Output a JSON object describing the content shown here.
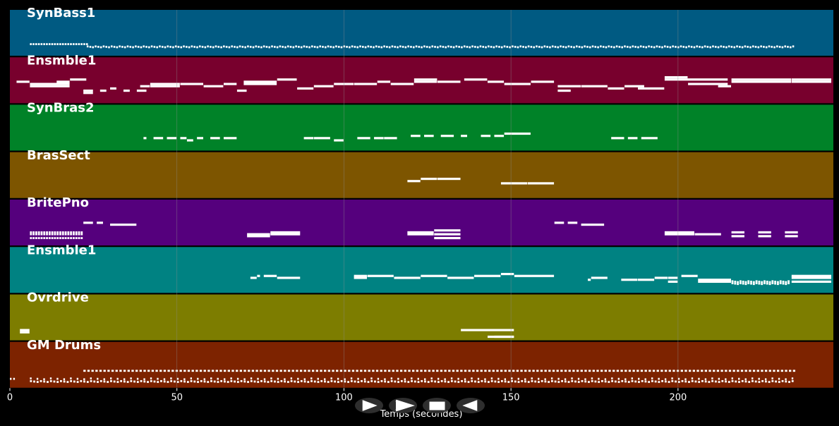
{
  "chart_data": {
    "type": "piano-roll",
    "title": "",
    "xlabel": "Temps (secondes)",
    "ylabel": "",
    "xlim": [
      0,
      246.5
    ],
    "x_ticks": [
      0,
      50,
      100,
      150,
      200
    ],
    "x_tick_labels": [
      "0",
      "50",
      "100",
      "150",
      "200"
    ],
    "grid": true,
    "note_color": "#ffffff",
    "grid_color": "#8c8c8c",
    "tracks": [
      {
        "name": "SynBass1",
        "color": "#005a82",
        "pitch_range": [
          0,
          10
        ],
        "dense": [
          {
            "start": 6,
            "end": 23,
            "pitch": 3,
            "step": 0.8,
            "len": 0.55,
            "var": 0
          },
          {
            "start": 23,
            "end": 235,
            "pitch": 2,
            "step": 0.8,
            "len": 0.55,
            "var": 1
          }
        ],
        "notes": []
      },
      {
        "name": "Ensmble1",
        "color": "#78002d",
        "pitch_range": [
          0,
          12
        ],
        "dense": [],
        "notes": [
          {
            "start": 2,
            "end": 6,
            "pitch": 8
          },
          {
            "start": 6,
            "end": 18,
            "pitch": 7
          },
          {
            "start": 6,
            "end": 18,
            "pitch": 6
          },
          {
            "start": 14,
            "end": 18,
            "pitch": 8
          },
          {
            "start": 18,
            "end": 23,
            "pitch": 9
          },
          {
            "start": 22,
            "end": 25,
            "pitch": 4
          },
          {
            "start": 22,
            "end": 25,
            "pitch": 3
          },
          {
            "start": 27,
            "end": 29,
            "pitch": 4
          },
          {
            "start": 30,
            "end": 32,
            "pitch": 5
          },
          {
            "start": 34,
            "end": 36,
            "pitch": 4
          },
          {
            "start": 38,
            "end": 41,
            "pitch": 4
          },
          {
            "start": 39,
            "end": 42,
            "pitch": 6
          },
          {
            "start": 42,
            "end": 51,
            "pitch": 6
          },
          {
            "start": 42,
            "end": 51,
            "pitch": 7
          },
          {
            "start": 51,
            "end": 58,
            "pitch": 7
          },
          {
            "start": 58,
            "end": 64,
            "pitch": 6
          },
          {
            "start": 64,
            "end": 68,
            "pitch": 7
          },
          {
            "start": 68,
            "end": 71,
            "pitch": 4
          },
          {
            "start": 70,
            "end": 80,
            "pitch": 8
          },
          {
            "start": 70,
            "end": 80,
            "pitch": 7
          },
          {
            "start": 80,
            "end": 86,
            "pitch": 9
          },
          {
            "start": 86,
            "end": 91,
            "pitch": 5
          },
          {
            "start": 91,
            "end": 97,
            "pitch": 6
          },
          {
            "start": 97,
            "end": 103,
            "pitch": 7
          },
          {
            "start": 103,
            "end": 110,
            "pitch": 7
          },
          {
            "start": 110,
            "end": 114,
            "pitch": 8
          },
          {
            "start": 114,
            "end": 121,
            "pitch": 7
          },
          {
            "start": 121,
            "end": 128,
            "pitch": 9
          },
          {
            "start": 121,
            "end": 128,
            "pitch": 8
          },
          {
            "start": 128,
            "end": 135,
            "pitch": 8
          },
          {
            "start": 136,
            "end": 143,
            "pitch": 9
          },
          {
            "start": 143,
            "end": 148,
            "pitch": 8
          },
          {
            "start": 148,
            "end": 156,
            "pitch": 7
          },
          {
            "start": 156,
            "end": 163,
            "pitch": 8
          },
          {
            "start": 164,
            "end": 168,
            "pitch": 4
          },
          {
            "start": 164,
            "end": 171,
            "pitch": 6
          },
          {
            "start": 171,
            "end": 179,
            "pitch": 6
          },
          {
            "start": 179,
            "end": 184,
            "pitch": 5
          },
          {
            "start": 184,
            "end": 190,
            "pitch": 6
          },
          {
            "start": 188,
            "end": 196,
            "pitch": 5
          },
          {
            "start": 196,
            "end": 203,
            "pitch": 10
          },
          {
            "start": 196,
            "end": 215,
            "pitch": 9
          },
          {
            "start": 203,
            "end": 215,
            "pitch": 7
          },
          {
            "start": 212,
            "end": 216,
            "pitch": 6
          },
          {
            "start": 216,
            "end": 234,
            "pitch": 9
          },
          {
            "start": 216,
            "end": 234,
            "pitch": 8
          },
          {
            "start": 234,
            "end": 246,
            "pitch": 9
          },
          {
            "start": 234,
            "end": 246,
            "pitch": 8
          }
        ]
      },
      {
        "name": "SynBras2",
        "color": "#008228",
        "pitch_range": [
          0,
          12
        ],
        "dense": [],
        "notes": [
          {
            "start": 40,
            "end": 41,
            "pitch": 4
          },
          {
            "start": 43,
            "end": 46,
            "pitch": 4
          },
          {
            "start": 47,
            "end": 50,
            "pitch": 4
          },
          {
            "start": 51,
            "end": 53,
            "pitch": 4
          },
          {
            "start": 53,
            "end": 55,
            "pitch": 3
          },
          {
            "start": 56,
            "end": 58,
            "pitch": 4
          },
          {
            "start": 60,
            "end": 63,
            "pitch": 4
          },
          {
            "start": 64,
            "end": 68,
            "pitch": 4
          },
          {
            "start": 88,
            "end": 91,
            "pitch": 4
          },
          {
            "start": 91,
            "end": 96,
            "pitch": 4
          },
          {
            "start": 97,
            "end": 100,
            "pitch": 3
          },
          {
            "start": 104,
            "end": 108,
            "pitch": 4
          },
          {
            "start": 109,
            "end": 112,
            "pitch": 4
          },
          {
            "start": 112,
            "end": 116,
            "pitch": 4
          },
          {
            "start": 120,
            "end": 123,
            "pitch": 5
          },
          {
            "start": 124,
            "end": 127,
            "pitch": 5
          },
          {
            "start": 129,
            "end": 133,
            "pitch": 5
          },
          {
            "start": 135,
            "end": 137,
            "pitch": 5
          },
          {
            "start": 141,
            "end": 144,
            "pitch": 5
          },
          {
            "start": 145,
            "end": 148,
            "pitch": 5
          },
          {
            "start": 148,
            "end": 156,
            "pitch": 6
          },
          {
            "start": 180,
            "end": 184,
            "pitch": 4
          },
          {
            "start": 185,
            "end": 188,
            "pitch": 4
          },
          {
            "start": 189,
            "end": 194,
            "pitch": 4
          }
        ]
      },
      {
        "name": "BrasSect",
        "color": "#7d5500",
        "pitch_range": [
          0,
          12
        ],
        "dense": [],
        "notes": [
          {
            "start": 119,
            "end": 123,
            "pitch": 6
          },
          {
            "start": 123,
            "end": 128,
            "pitch": 7
          },
          {
            "start": 128,
            "end": 135,
            "pitch": 7
          },
          {
            "start": 147,
            "end": 155,
            "pitch": 5
          },
          {
            "start": 155,
            "end": 163,
            "pitch": 5
          }
        ]
      },
      {
        "name": "BritePno",
        "color": "#55007d",
        "pitch_range": [
          0,
          14
        ],
        "dense": [
          {
            "start": 6,
            "end": 22,
            "pitch": 5,
            "step": 0.8,
            "len": 0.6,
            "var": 0
          },
          {
            "start": 6,
            "end": 22,
            "pitch": 4,
            "step": 0.8,
            "len": 0.6,
            "var": 0
          },
          {
            "start": 6,
            "end": 22,
            "pitch": 2,
            "step": 0.8,
            "len": 0.6,
            "var": 0
          }
        ],
        "notes": [
          {
            "start": 22,
            "end": 25,
            "pitch": 10
          },
          {
            "start": 26,
            "end": 28,
            "pitch": 10
          },
          {
            "start": 30,
            "end": 38,
            "pitch": 9
          },
          {
            "start": 71,
            "end": 78,
            "pitch": 4
          },
          {
            "start": 71,
            "end": 78,
            "pitch": 3
          },
          {
            "start": 78,
            "end": 87,
            "pitch": 5
          },
          {
            "start": 78,
            "end": 87,
            "pitch": 4
          },
          {
            "start": 119,
            "end": 127,
            "pitch": 5
          },
          {
            "start": 119,
            "end": 127,
            "pitch": 4
          },
          {
            "start": 127,
            "end": 135,
            "pitch": 6
          },
          {
            "start": 127,
            "end": 135,
            "pitch": 4
          },
          {
            "start": 127,
            "end": 135,
            "pitch": 2
          },
          {
            "start": 163,
            "end": 166,
            "pitch": 10
          },
          {
            "start": 167,
            "end": 170,
            "pitch": 10
          },
          {
            "start": 171,
            "end": 178,
            "pitch": 9
          },
          {
            "start": 196,
            "end": 205,
            "pitch": 5
          },
          {
            "start": 196,
            "end": 205,
            "pitch": 4
          },
          {
            "start": 205,
            "end": 213,
            "pitch": 4
          },
          {
            "start": 216,
            "end": 220,
            "pitch": 5
          },
          {
            "start": 216,
            "end": 220,
            "pitch": 3
          },
          {
            "start": 224,
            "end": 228,
            "pitch": 5
          },
          {
            "start": 224,
            "end": 228,
            "pitch": 3
          },
          {
            "start": 232,
            "end": 236,
            "pitch": 5
          },
          {
            "start": 232,
            "end": 236,
            "pitch": 3
          }
        ]
      },
      {
        "name": "Ensmble1",
        "color": "#008282",
        "pitch_range": [
          0,
          14
        ],
        "dense": [
          {
            "start": 216,
            "end": 233,
            "pitch": 4,
            "step": 0.8,
            "len": 0.6,
            "var": 1
          },
          {
            "start": 216,
            "end": 233,
            "pitch": 3,
            "step": 0.8,
            "len": 0.6,
            "var": 1
          }
        ],
        "notes": [
          {
            "start": 72,
            "end": 74,
            "pitch": 6
          },
          {
            "start": 74,
            "end": 75,
            "pitch": 7
          },
          {
            "start": 76,
            "end": 80,
            "pitch": 7
          },
          {
            "start": 80,
            "end": 87,
            "pitch": 6
          },
          {
            "start": 103,
            "end": 107,
            "pitch": 6
          },
          {
            "start": 103,
            "end": 107,
            "pitch": 7
          },
          {
            "start": 107,
            "end": 115,
            "pitch": 7
          },
          {
            "start": 115,
            "end": 123,
            "pitch": 6
          },
          {
            "start": 123,
            "end": 131,
            "pitch": 7
          },
          {
            "start": 131,
            "end": 139,
            "pitch": 6
          },
          {
            "start": 139,
            "end": 147,
            "pitch": 7
          },
          {
            "start": 147,
            "end": 151,
            "pitch": 8
          },
          {
            "start": 151,
            "end": 163,
            "pitch": 7
          },
          {
            "start": 173,
            "end": 174,
            "pitch": 5
          },
          {
            "start": 174,
            "end": 179,
            "pitch": 6
          },
          {
            "start": 183,
            "end": 188,
            "pitch": 5
          },
          {
            "start": 188,
            "end": 193,
            "pitch": 5
          },
          {
            "start": 193,
            "end": 197,
            "pitch": 6
          },
          {
            "start": 197,
            "end": 200,
            "pitch": 4
          },
          {
            "start": 197,
            "end": 200,
            "pitch": 6
          },
          {
            "start": 201,
            "end": 206,
            "pitch": 7
          },
          {
            "start": 206,
            "end": 216,
            "pitch": 5
          },
          {
            "start": 206,
            "end": 216,
            "pitch": 4
          },
          {
            "start": 234,
            "end": 246,
            "pitch": 7
          },
          {
            "start": 234,
            "end": 246,
            "pitch": 6
          },
          {
            "start": 234,
            "end": 246,
            "pitch": 4
          }
        ]
      },
      {
        "name": "Ovrdrive",
        "color": "#7d7d00",
        "pitch_range": [
          0,
          12
        ],
        "dense": [],
        "notes": [
          {
            "start": 3,
            "end": 6,
            "pitch": 3
          },
          {
            "start": 3,
            "end": 6,
            "pitch": 2
          },
          {
            "start": 135,
            "end": 151,
            "pitch": 3
          },
          {
            "start": 143,
            "end": 151,
            "pitch": 0
          },
          {
            "start": 145,
            "end": 151,
            "pitch": 0
          }
        ]
      },
      {
        "name": "GM Drums",
        "color": "#7d2300",
        "pitch_range": [
          0,
          10
        ],
        "dense": [
          {
            "start": 22,
            "end": 235,
            "pitch": 5,
            "step": 1.2,
            "len": 0.7,
            "var": 0
          },
          {
            "start": 6,
            "end": 235,
            "pitch": 1,
            "step": 1.0,
            "len": 0.6,
            "var": 1
          },
          {
            "start": 6,
            "end": 235,
            "pitch": 2,
            "step": 2.0,
            "len": 0.5,
            "var": 1
          },
          {
            "start": 0,
            "end": 2,
            "pitch": 2,
            "step": 1.0,
            "len": 0.5,
            "var": 0
          }
        ],
        "notes": []
      }
    ]
  },
  "controls": [
    {
      "name": "play-button",
      "icon": "play-icon"
    },
    {
      "name": "fast-forward-button",
      "icon": "fast-forward-icon"
    },
    {
      "name": "stop-button",
      "icon": "stop-icon"
    },
    {
      "name": "rewind-button",
      "icon": "rewind-icon"
    }
  ]
}
